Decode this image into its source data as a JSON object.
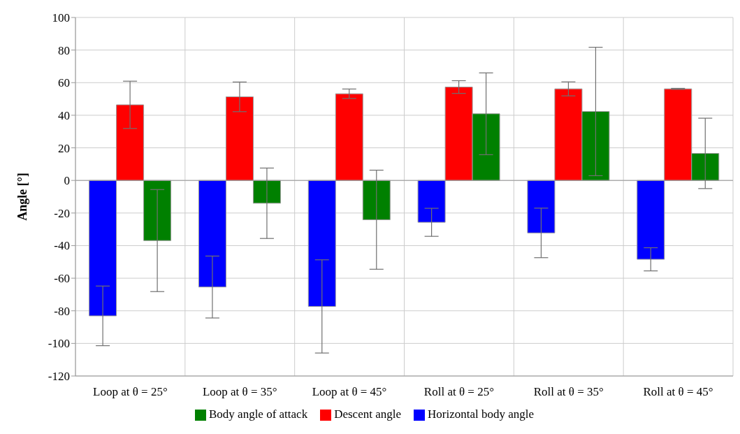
{
  "chart_data": {
    "type": "bar",
    "ylabel": "Angle [°]",
    "categories": [
      "Loop at θ = 25°",
      "Loop at θ = 35°",
      "Loop at θ = 45°",
      "Roll at θ = 25°",
      "Roll at θ = 35°",
      "Roll at θ = 45°"
    ],
    "series": [
      {
        "name": "Horizontal body angle",
        "color": "#0000ff",
        "values": [
          -83.1,
          -65.4,
          -77.3,
          -25.7,
          -32.2,
          -48.4
        ],
        "errors": [
          18.3,
          19,
          28.6,
          8.6,
          15.2,
          7.1
        ]
      },
      {
        "name": "Descent angle",
        "color": "#ff0000",
        "values": [
          46.4,
          51.3,
          53.2,
          57.3,
          56.2,
          56.2
        ],
        "errors": [
          14.5,
          9.1,
          2.9,
          3.9,
          4.3,
          0.3
        ]
      },
      {
        "name": "Body angle of attack",
        "color": "#008000",
        "values": [
          -36.9,
          -14,
          -24.1,
          40.9,
          42.3,
          16.6
        ],
        "errors": [
          31.3,
          21.6,
          30.4,
          25.1,
          39.4,
          21.6
        ]
      }
    ],
    "ylim": [
      -120,
      100
    ],
    "yticks": [
      -120,
      -100,
      -80,
      -60,
      -40,
      -20,
      0,
      20,
      40,
      60,
      80,
      100
    ],
    "grid": true,
    "legend": "bottom"
  }
}
